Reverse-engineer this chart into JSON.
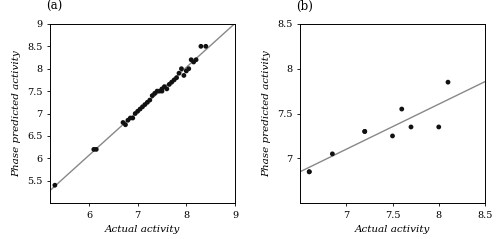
{
  "train_x": [
    5.3,
    6.1,
    6.15,
    6.7,
    6.75,
    6.8,
    6.85,
    6.9,
    6.95,
    7.0,
    7.05,
    7.1,
    7.15,
    7.2,
    7.25,
    7.3,
    7.35,
    7.4,
    7.45,
    7.5,
    7.5,
    7.55,
    7.6,
    7.65,
    7.7,
    7.75,
    7.8,
    7.85,
    7.9,
    7.95,
    8.0,
    8.05,
    8.1,
    8.15,
    8.2,
    8.3,
    8.4
  ],
  "train_y": [
    5.4,
    6.2,
    6.2,
    6.8,
    6.75,
    6.85,
    6.9,
    6.9,
    7.0,
    7.05,
    7.1,
    7.15,
    7.2,
    7.25,
    7.3,
    7.4,
    7.45,
    7.5,
    7.5,
    7.55,
    7.5,
    7.6,
    7.55,
    7.65,
    7.7,
    7.75,
    7.8,
    7.9,
    8.0,
    7.85,
    7.95,
    8.0,
    8.2,
    8.15,
    8.2,
    8.5,
    8.5
  ],
  "test_x": [
    6.6,
    6.6,
    6.85,
    7.2,
    7.2,
    7.5,
    7.6,
    7.7,
    8.0,
    8.1
  ],
  "test_y": [
    6.85,
    6.85,
    7.05,
    7.3,
    7.3,
    7.25,
    7.55,
    7.35,
    7.35,
    7.85
  ],
  "train_xlim": [
    5.2,
    9.0
  ],
  "train_ylim": [
    5.0,
    9.0
  ],
  "train_xticks": [
    6,
    7,
    8,
    9
  ],
  "train_yticks": [
    5.5,
    6,
    6.5,
    7,
    7.5,
    8,
    8.5,
    9
  ],
  "train_ytick_labels": [
    "5.5",
    "6",
    "6.5",
    "7",
    "7.5",
    "8",
    "8.5",
    "9"
  ],
  "test_xlim": [
    6.5,
    8.5
  ],
  "test_ylim": [
    6.5,
    8.5
  ],
  "test_xticks": [
    7,
    7.5,
    8,
    8.5
  ],
  "test_yticks": [
    7,
    7.5,
    8,
    8.5
  ],
  "test_ytick_labels": [
    "7",
    "7.5",
    "8",
    "8.5"
  ],
  "xlabel": "Actual activity",
  "ylabel": "Phase predicted activity",
  "marker_color": "#111111",
  "marker_size": 12,
  "line_color": "#888888",
  "line_width": 1.0,
  "label_a": "(a)",
  "label_b": "(b)",
  "font_size_label": 7.5,
  "font_size_tick": 7,
  "fig_width": 5.0,
  "fig_height": 2.39
}
